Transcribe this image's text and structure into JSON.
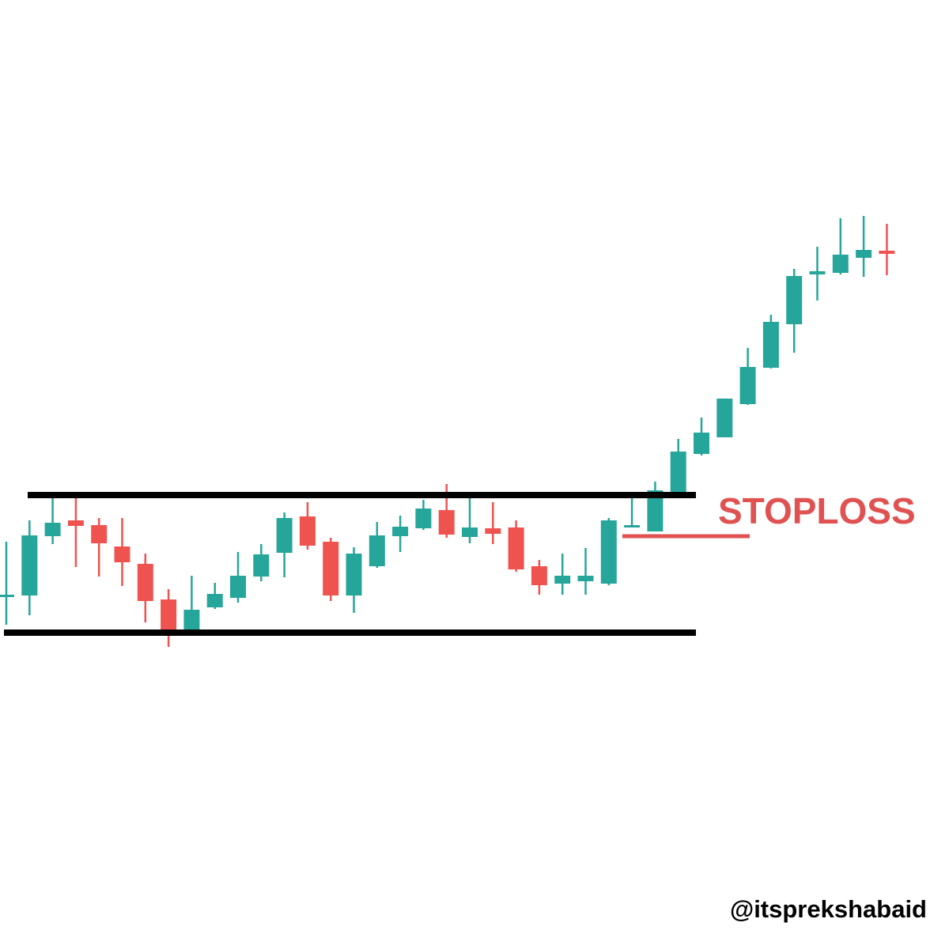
{
  "chart_data": {
    "type": "candlestick",
    "categories": [
      null,
      null,
      null,
      null,
      null,
      null,
      null,
      null,
      null,
      null,
      null,
      null,
      null,
      null,
      null,
      null,
      null,
      null,
      null,
      null,
      null,
      null,
      null,
      null,
      null,
      null,
      null,
      null,
      null,
      null,
      null,
      null,
      null,
      null,
      null,
      null,
      null,
      null,
      null
    ],
    "open": [
      446,
      447,
      522,
      542,
      536,
      509,
      487,
      442,
      402,
      432,
      444,
      471,
      501,
      547,
      515,
      447,
      484,
      522,
      532,
      555,
      521,
      532,
      533,
      484,
      462,
      465,
      462,
      534,
      528,
      578,
      626,
      647,
      689,
      735,
      790,
      853,
      855,
      874,
      883
    ],
    "high": [
      515,
      542,
      572,
      572,
      545,
      545,
      500,
      455,
      472,
      463,
      502,
      512,
      552,
      565,
      520,
      508,
      540,
      548,
      568,
      588,
      572,
      565,
      542,
      492,
      500,
      507,
      545,
      570,
      591,
      645,
      672,
      696,
      760,
      802,
      860,
      888,
      924,
      927,
      917
    ],
    "low": [
      410,
      422,
      512,
      483,
      471,
      459,
      413,
      382,
      400,
      430,
      438,
      465,
      470,
      505,
      440,
      425,
      482,
      502,
      530,
      520,
      513,
      512,
      477,
      448,
      448,
      448,
      460,
      533,
      528,
      575,
      624,
      647,
      688,
      734,
      754,
      820,
      853,
      850,
      852
    ],
    "close": [
      448,
      523,
      539,
      535,
      513,
      489,
      440,
      402,
      429,
      449,
      472,
      499,
      545,
      510,
      447,
      500,
      523,
      534,
      557,
      524,
      533,
      525,
      480,
      460,
      472,
      472,
      542,
      536,
      580,
      629,
      653,
      696,
      736,
      793,
      851,
      857,
      878,
      884,
      879
    ],
    "up_color": "#26a69a",
    "down_color": "#ef5350",
    "ylim": [
      0,
      1200
    ],
    "levels": [
      574,
      400
    ],
    "level_color": "#000000",
    "stoploss": {
      "label": "STOPLOSS",
      "value": 522,
      "color": "#e05252"
    },
    "watermark": "@itsprekshabaid"
  }
}
